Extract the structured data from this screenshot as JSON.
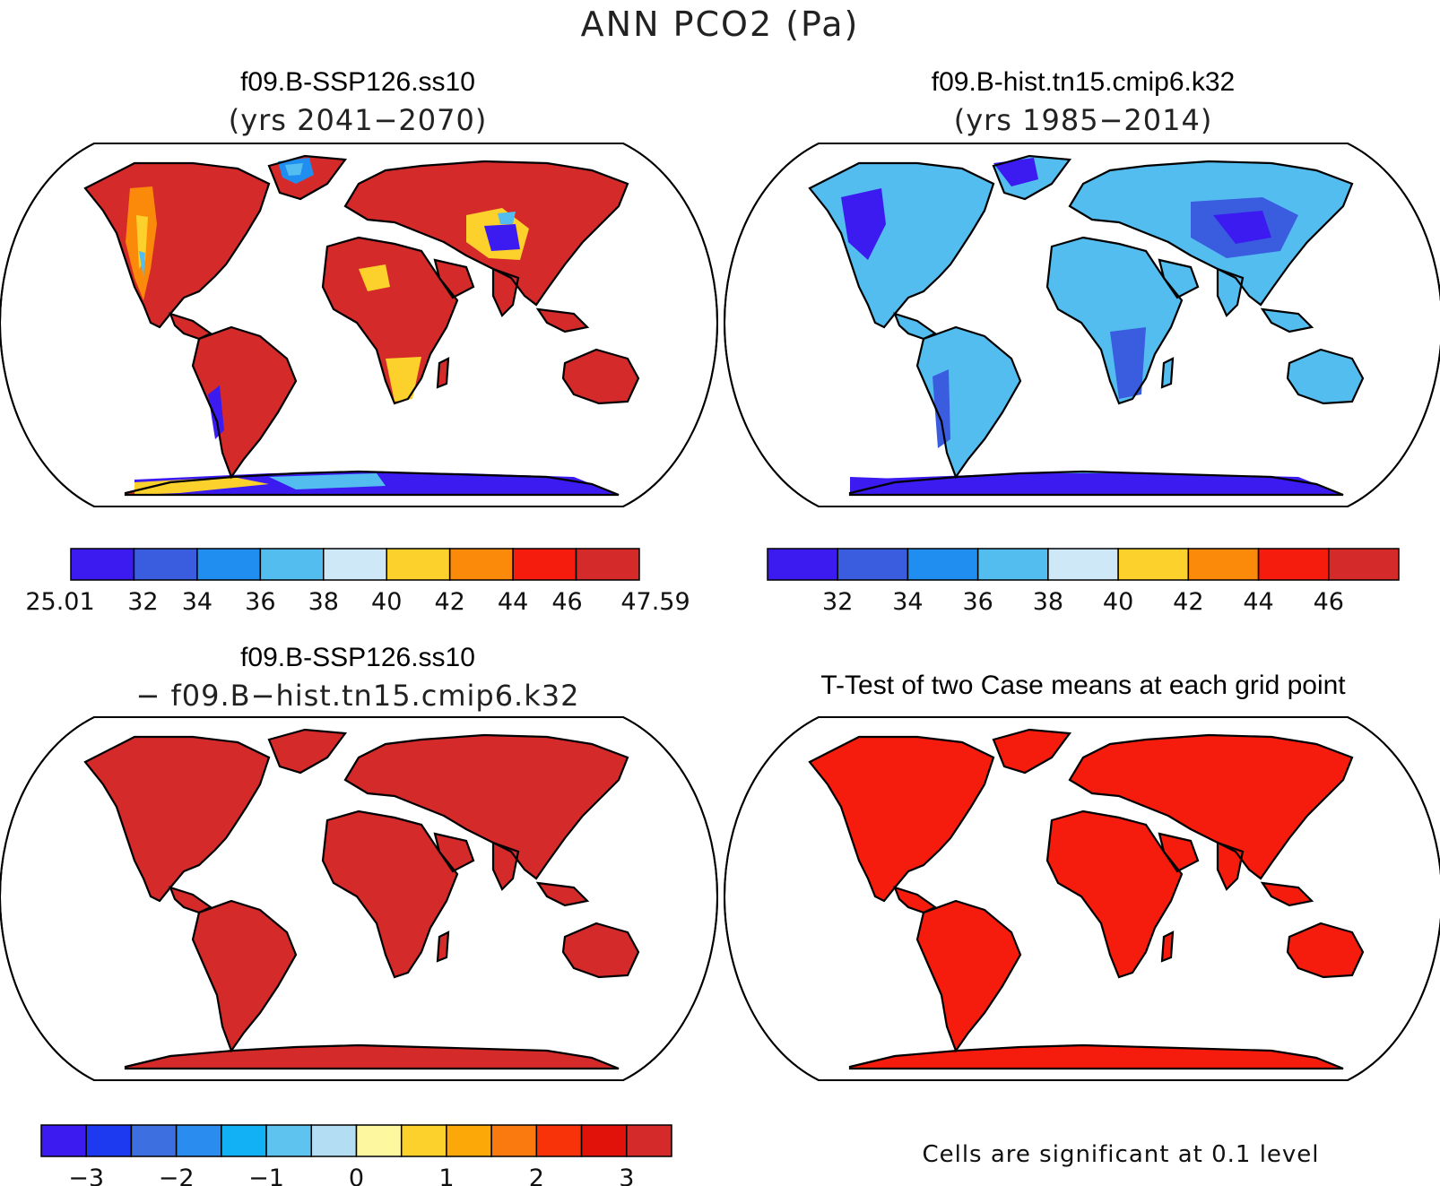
{
  "figure": {
    "title": "ANN PCO2 (Pa)",
    "panels": [
      {
        "case_title": "f09.B-SSP126.ss10",
        "subtitle": "(yrs 2041−2070)",
        "fill_theme": "warm",
        "colorbar": {
          "colors": [
            "#3b1bf0",
            "#3a5de0",
            "#1f8ef0",
            "#53bdf0",
            "#cfe8f7",
            "#fdd12b",
            "#fb8a0a",
            "#f51b0d",
            "#d42a2a"
          ],
          "labels": [
            "25.01",
            "32",
            "34",
            "36",
            "38",
            "40",
            "42",
            "44",
            "46",
            "47.59"
          ]
        }
      },
      {
        "case_title": "f09.B-hist.tn15.cmip6.k32",
        "subtitle": "(yrs 1985−2014)",
        "fill_theme": "cool",
        "colorbar": {
          "colors": [
            "#3b1bf0",
            "#3a5de0",
            "#1f8ef0",
            "#53bdf0",
            "#cfe8f7",
            "#fdd12b",
            "#fb8a0a",
            "#f51b0d",
            "#d42a2a"
          ],
          "labels": [
            "32",
            "34",
            "36",
            "38",
            "40",
            "42",
            "44",
            "46"
          ]
        }
      },
      {
        "case_title": "f09.B-SSP126.ss10",
        "subtitle": "− f09.B−hist.tn15.cmip6.k32",
        "fill_theme": "diff",
        "colorbar": {
          "colors": [
            "#3b1bf0",
            "#1e3af0",
            "#3d6fe0",
            "#2b8cf0",
            "#12b0f5",
            "#5fc3f0",
            "#b3ddf3",
            "#fdf7a0",
            "#fdd12b",
            "#fca808",
            "#fb7a10",
            "#f8330a",
            "#e0120a",
            "#d42a2a"
          ],
          "labels": [
            "−3",
            "−2",
            "−1",
            "0",
            "1",
            "2",
            "3"
          ]
        }
      },
      {
        "case_title": "T-Test of two Case means at each grid point",
        "fill_theme": "ttest",
        "note": "Cells are significant at 0.1 level"
      }
    ]
  }
}
